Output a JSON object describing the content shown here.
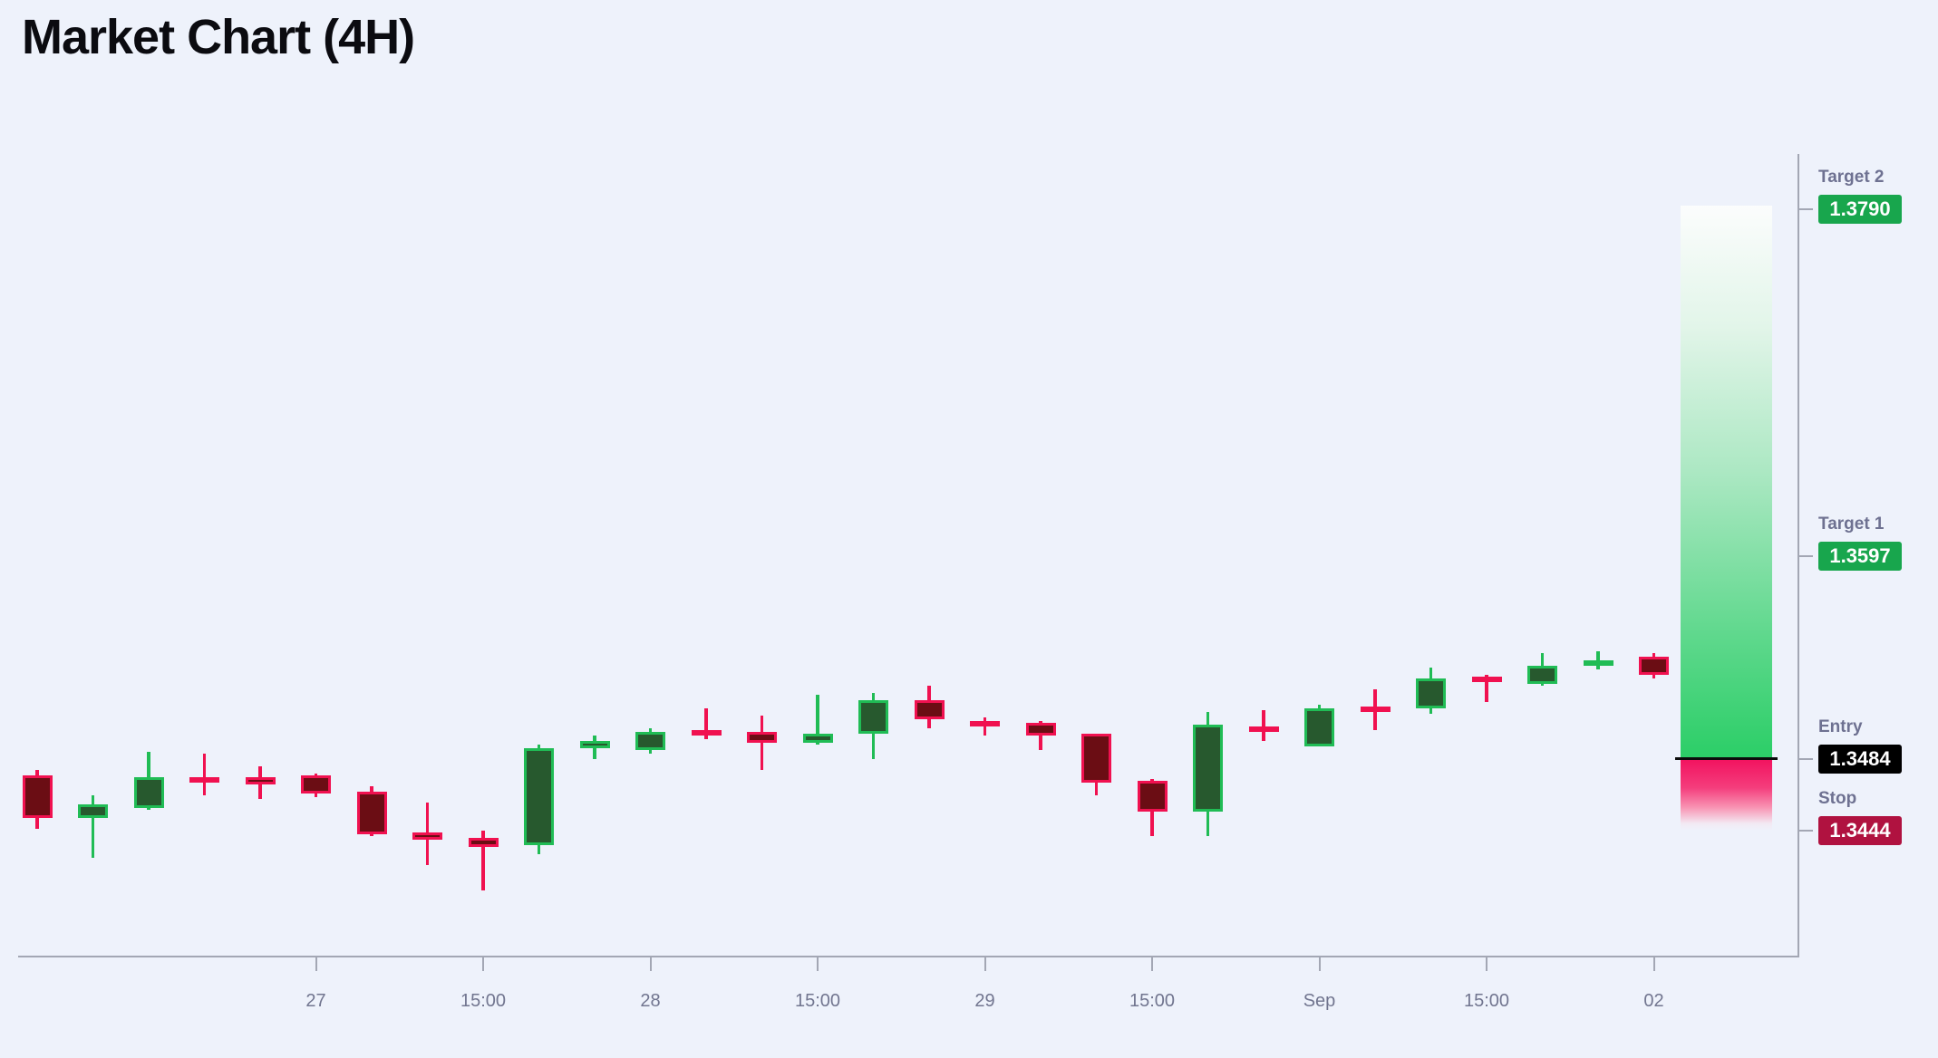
{
  "title": "Market Chart (4H)",
  "chart_data": {
    "type": "candlestick",
    "timeframe": "4H",
    "grid": "off",
    "legend": "none",
    "x_axis": {
      "tick_labels": [
        {
          "candle_index": 5,
          "label": "27"
        },
        {
          "candle_index": 8,
          "label": "15:00"
        },
        {
          "candle_index": 11,
          "label": "28"
        },
        {
          "candle_index": 14,
          "label": "15:00"
        },
        {
          "candle_index": 17,
          "label": "29"
        },
        {
          "candle_index": 20,
          "label": "15:00"
        },
        {
          "candle_index": 23,
          "label": "Sep"
        },
        {
          "candle_index": 26,
          "label": "15:00"
        },
        {
          "candle_index": 29,
          "label": "02"
        }
      ]
    },
    "y_axis": {
      "side": "right",
      "visible_price_range_approx": [
        1.3395,
        1.38
      ],
      "tick_labels_shown": [
        "1.3790",
        "1.3597",
        "1.3484",
        "1.3444"
      ]
    },
    "candles": [
      {
        "o": 1.3475,
        "h": 1.3478,
        "l": 1.3445,
        "c": 1.3451
      },
      {
        "o": 1.3451,
        "h": 1.3464,
        "l": 1.3429,
        "c": 1.3459
      },
      {
        "o": 1.3457,
        "h": 1.3488,
        "l": 1.3456,
        "c": 1.3474
      },
      {
        "o": 1.3474,
        "h": 1.3487,
        "l": 1.3464,
        "c": 1.3471
      },
      {
        "o": 1.3474,
        "h": 1.348,
        "l": 1.3462,
        "c": 1.347
      },
      {
        "o": 1.3475,
        "h": 1.3476,
        "l": 1.3463,
        "c": 1.3465
      },
      {
        "o": 1.3466,
        "h": 1.3469,
        "l": 1.3441,
        "c": 1.3442
      },
      {
        "o": 1.3443,
        "h": 1.346,
        "l": 1.3425,
        "c": 1.3439
      },
      {
        "o": 1.344,
        "h": 1.3444,
        "l": 1.3411,
        "c": 1.3435
      },
      {
        "o": 1.3436,
        "h": 1.3492,
        "l": 1.3431,
        "c": 1.349
      },
      {
        "o": 1.349,
        "h": 1.3497,
        "l": 1.3484,
        "c": 1.3494
      },
      {
        "o": 1.3489,
        "h": 1.3501,
        "l": 1.3487,
        "c": 1.3499
      },
      {
        "o": 1.35,
        "h": 1.3512,
        "l": 1.3495,
        "c": 1.3497
      },
      {
        "o": 1.3499,
        "h": 1.3508,
        "l": 1.3478,
        "c": 1.3493
      },
      {
        "o": 1.3493,
        "h": 1.352,
        "l": 1.3492,
        "c": 1.3498
      },
      {
        "o": 1.3498,
        "h": 1.3521,
        "l": 1.3484,
        "c": 1.3517
      },
      {
        "o": 1.3517,
        "h": 1.3525,
        "l": 1.3501,
        "c": 1.3506
      },
      {
        "o": 1.3505,
        "h": 1.3507,
        "l": 1.3497,
        "c": 1.3503
      },
      {
        "o": 1.3504,
        "h": 1.3505,
        "l": 1.3489,
        "c": 1.3497
      },
      {
        "o": 1.3498,
        "h": 1.3498,
        "l": 1.3464,
        "c": 1.3471
      },
      {
        "o": 1.3472,
        "h": 1.3473,
        "l": 1.3441,
        "c": 1.3455
      },
      {
        "o": 1.3455,
        "h": 1.351,
        "l": 1.3441,
        "c": 1.3503
      },
      {
        "o": 1.3502,
        "h": 1.3511,
        "l": 1.3494,
        "c": 1.3499
      },
      {
        "o": 1.3491,
        "h": 1.3514,
        "l": 1.3491,
        "c": 1.3512
      },
      {
        "o": 1.3513,
        "h": 1.3523,
        "l": 1.35,
        "c": 1.351
      },
      {
        "o": 1.3512,
        "h": 1.3535,
        "l": 1.3509,
        "c": 1.3529
      },
      {
        "o": 1.353,
        "h": 1.3531,
        "l": 1.3516,
        "c": 1.3527
      },
      {
        "o": 1.3526,
        "h": 1.3543,
        "l": 1.3525,
        "c": 1.3536
      },
      {
        "o": 1.3536,
        "h": 1.3544,
        "l": 1.3534,
        "c": 1.3539
      },
      {
        "o": 1.3541,
        "h": 1.3543,
        "l": 1.3529,
        "c": 1.3531
      }
    ],
    "levels": [
      {
        "id": "target2",
        "label": "Target 2",
        "value": "1.3790",
        "price": 1.379,
        "style": "green"
      },
      {
        "id": "target1",
        "label": "Target 1",
        "value": "1.3597",
        "price": 1.3597,
        "style": "green"
      },
      {
        "id": "entry",
        "label": "Entry",
        "value": "1.3484",
        "price": 1.3484,
        "style": "black"
      },
      {
        "id": "stop",
        "label": "Stop",
        "value": "1.3444",
        "price": 1.3444,
        "style": "crimson"
      }
    ],
    "zones": [
      {
        "id": "profit-zone",
        "from_price": 1.3484,
        "to_price": 1.379,
        "color": "green-gradient"
      },
      {
        "id": "loss-zone",
        "from_price": 1.3444,
        "to_price": 1.3484,
        "color": "red-gradient"
      }
    ]
  },
  "colors": {
    "background": "#eef2fb",
    "title_text": "#0b0b10",
    "bullish_border": "#20bc55",
    "bullish_fill": "#27592e",
    "bearish_border": "#f01150",
    "bearish_fill": "#6b0d14",
    "target_badge": "#18a64d",
    "entry_badge": "#000000",
    "stop_badge": "#b01240",
    "profit_zone_solid": "#2bce67",
    "loss_zone_solid": "#f2125f",
    "entry_line": "#0b0b0b",
    "axis": "#a3a7b4",
    "axis_label": "#71758f",
    "level_label": "#6e7191",
    "badge_text": "#ffffff"
  }
}
